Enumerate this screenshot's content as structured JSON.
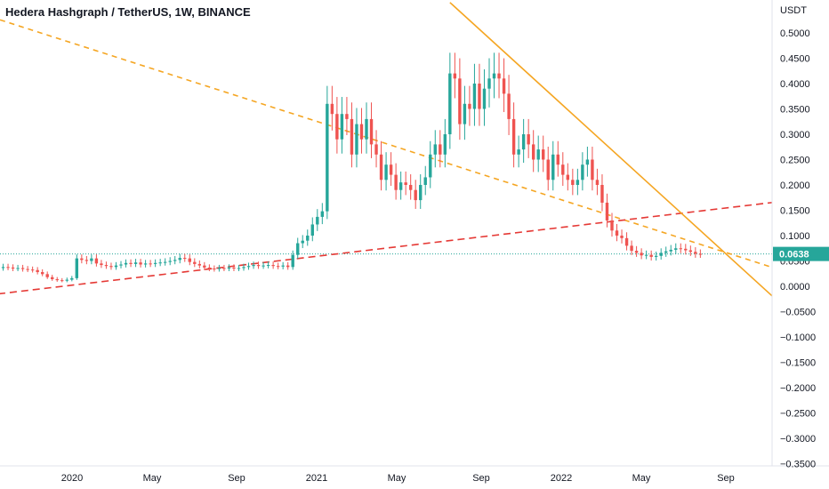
{
  "chart_data": {
    "type": "candlestick",
    "title": "Hedera Hashgraph / TetherUS, 1W, BINANCE",
    "y_unit": "USDT",
    "ylim": [
      -0.35,
      0.55
    ],
    "y_ticks": [
      "0.5000",
      "0.4500",
      "0.4000",
      "0.3500",
      "0.3000",
      "0.2500",
      "0.2000",
      "0.1500",
      "0.1000",
      "0.0500",
      "0.0000",
      "−0.0500",
      "−0.1000",
      "−0.1500",
      "−0.2000",
      "−0.2500",
      "−0.3000",
      "−0.3500"
    ],
    "y_tick_values": [
      0.5,
      0.45,
      0.4,
      0.35,
      0.3,
      0.25,
      0.2,
      0.15,
      0.1,
      0.05,
      0.0,
      -0.05,
      -0.1,
      -0.15,
      -0.2,
      -0.25,
      -0.3,
      -0.35
    ],
    "x_ticks": [
      "2020",
      "May",
      "Sep",
      "2021",
      "May",
      "Sep",
      "2022",
      "May",
      "Sep"
    ],
    "last_price": 0.0638,
    "last_price_label": "0.0638",
    "colors": {
      "up": "#26a69a",
      "down": "#ef5350",
      "dashed_orange": "#f5a623",
      "dashed_red": "#e53935",
      "solid_orange": "#f5a623",
      "price_label_bg": "#26a69a"
    },
    "close_series": [
      0.036,
      0.038,
      0.037,
      0.035,
      0.036,
      0.034,
      0.033,
      0.032,
      0.028,
      0.024,
      0.018,
      0.014,
      0.012,
      0.011,
      0.013,
      0.016,
      0.055,
      0.052,
      0.05,
      0.055,
      0.045,
      0.042,
      0.04,
      0.038,
      0.041,
      0.043,
      0.046,
      0.044,
      0.047,
      0.043,
      0.045,
      0.044,
      0.046,
      0.047,
      0.048,
      0.05,
      0.052,
      0.056,
      0.055,
      0.048,
      0.044,
      0.041,
      0.037,
      0.035,
      0.034,
      0.036,
      0.035,
      0.037,
      0.035,
      0.036,
      0.038,
      0.04,
      0.042,
      0.04,
      0.041,
      0.042,
      0.04,
      0.039,
      0.041,
      0.038,
      0.062,
      0.085,
      0.09,
      0.1,
      0.122,
      0.137,
      0.148,
      0.36,
      0.34,
      0.29,
      0.34,
      0.33,
      0.26,
      0.32,
      0.29,
      0.33,
      0.28,
      0.26,
      0.21,
      0.24,
      0.22,
      0.19,
      0.205,
      0.2,
      0.19,
      0.17,
      0.2,
      0.215,
      0.26,
      0.28,
      0.26,
      0.3,
      0.42,
      0.41,
      0.32,
      0.36,
      0.35,
      0.4,
      0.35,
      0.39,
      0.41,
      0.42,
      0.41,
      0.38,
      0.33,
      0.26,
      0.27,
      0.3,
      0.28,
      0.25,
      0.27,
      0.25,
      0.21,
      0.26,
      0.24,
      0.22,
      0.21,
      0.2,
      0.21,
      0.24,
      0.25,
      0.21,
      0.2,
      0.165,
      0.13,
      0.11,
      0.1,
      0.095,
      0.08,
      0.07,
      0.066,
      0.061,
      0.062,
      0.058,
      0.06,
      0.066,
      0.069,
      0.072,
      0.075,
      0.074,
      0.071,
      0.068,
      0.064,
      0.0638
    ],
    "annotations": [
      {
        "type": "trendline",
        "style": "dashed",
        "color": "orange",
        "from": {
          "x_index": -30,
          "y": 0.62
        },
        "to": {
          "x_index": 160,
          "y": 0.03
        }
      },
      {
        "type": "trendline",
        "style": "dashed",
        "color": "red",
        "from": {
          "x_index": 0,
          "y": -0.015
        },
        "to": {
          "x_index": 160,
          "y": 0.168
        }
      },
      {
        "type": "trendline",
        "style": "solid",
        "color": "orange",
        "from": {
          "x_index": 92,
          "y": 0.56
        },
        "to": {
          "x_index": 160,
          "y": -0.04
        }
      }
    ]
  }
}
